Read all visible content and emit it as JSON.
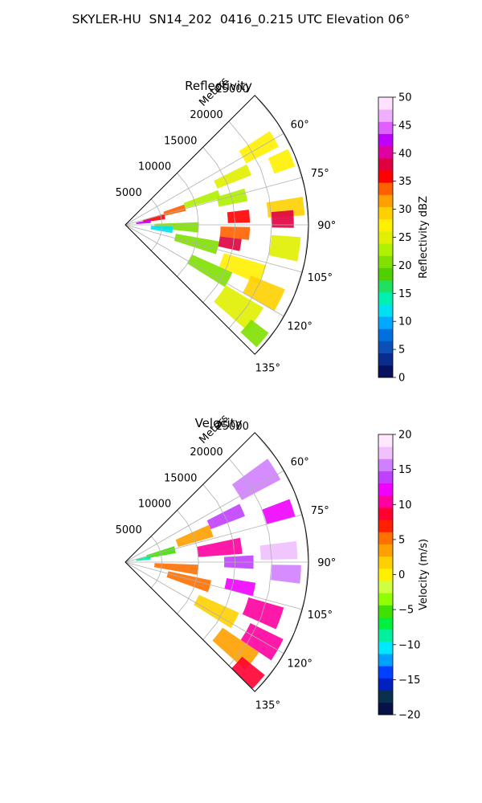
{
  "figure": {
    "title": "SKYLER-HU  SN14_202  0416_0.215 UTC Elevation 06°"
  },
  "colors": {
    "reflectivity_scale": [
      "#081060",
      "#0a2c8c",
      "#0c4fb8",
      "#0070e0",
      "#00a8ff",
      "#00e0f0",
      "#00f0b0",
      "#20e060",
      "#50d000",
      "#80e000",
      "#b0f000",
      "#e0f000",
      "#fff000",
      "#ffd000",
      "#ffa000",
      "#ff6000",
      "#ff0000",
      "#e00040",
      "#e000a0",
      "#c000ff",
      "#e060ff",
      "#f0b0ff",
      "#ffe0ff"
    ],
    "velocity_scale": [
      "#081048",
      "#0a3050",
      "#0020c0",
      "#0040ff",
      "#00a0ff",
      "#00e8ff",
      "#00f0a0",
      "#00f040",
      "#40e000",
      "#90ff00",
      "#d0ff40",
      "#fff000",
      "#ffd000",
      "#ffa000",
      "#ff7000",
      "#ff2000",
      "#ff0030",
      "#ff00a0",
      "#f000ff",
      "#c040ff",
      "#d080ff",
      "#f0c0ff",
      "#ffe8ff"
    ]
  },
  "chart_data": [
    {
      "type": "heatmap",
      "projection": "polar-sector",
      "title": "Reflectivity",
      "radial_label": "Meters",
      "radial_ticks": [
        5000,
        10000,
        15000,
        20000,
        25000
      ],
      "radial_tick_labels": [
        "5000",
        "10000",
        "15000",
        "20000",
        "25000"
      ],
      "angular_ticks": [
        60,
        75,
        90,
        105,
        120,
        135
      ],
      "angular_tick_labels": [
        "60°",
        "75°",
        "90°",
        "105°",
        "120°",
        "135°"
      ],
      "theta_range": [
        45,
        135
      ],
      "r_range": [
        0,
        25000
      ],
      "grid": true,
      "colorbar": {
        "label": "Reflectivity dBZ",
        "range": [
          0,
          50
        ],
        "ticks": [
          0,
          5,
          10,
          15,
          20,
          25,
          30,
          35,
          40,
          45,
          50
        ],
        "tick_labels": [
          "0",
          "5",
          "10",
          "15",
          "20",
          "25",
          "30",
          "35",
          "40",
          "45",
          "50"
        ]
      },
      "cells": [
        {
          "theta": 60,
          "r": 21000,
          "dr": 5000,
          "dtheta": 6,
          "value": 27
        },
        {
          "theta": 66,
          "r": 16000,
          "dr": 5000,
          "dtheta": 5,
          "value": 24
        },
        {
          "theta": 68,
          "r": 23000,
          "dr": 3000,
          "dtheta": 6,
          "value": 28
        },
        {
          "theta": 72,
          "r": 11000,
          "dr": 5000,
          "dtheta": 5,
          "value": 22
        },
        {
          "theta": 74,
          "r": 7000,
          "dr": 3000,
          "dtheta": 6,
          "value": 34
        },
        {
          "theta": 76,
          "r": 15000,
          "dr": 4000,
          "dtheta": 6,
          "value": 23
        },
        {
          "theta": 78,
          "r": 4000,
          "dr": 3000,
          "dtheta": 8,
          "value": 35
        },
        {
          "theta": 82,
          "r": 2500,
          "dr": 2000,
          "dtheta": 8,
          "value": 42
        },
        {
          "theta": 84,
          "r": 22000,
          "dr": 5000,
          "dtheta": 6,
          "value": 30
        },
        {
          "theta": 86,
          "r": 15500,
          "dr": 3000,
          "dtheta": 6,
          "value": 35
        },
        {
          "theta": 88,
          "r": 21500,
          "dr": 3000,
          "dtheta": 6,
          "value": 38
        },
        {
          "theta": 92,
          "r": 7000,
          "dr": 6000,
          "dtheta": 8,
          "value": 20
        },
        {
          "theta": 94,
          "r": 15000,
          "dr": 4000,
          "dtheta": 6,
          "value": 33
        },
        {
          "theta": 96,
          "r": 5000,
          "dr": 3000,
          "dtheta": 8,
          "value": 13
        },
        {
          "theta": 98,
          "r": 22000,
          "dr": 4000,
          "dtheta": 8,
          "value": 24
        },
        {
          "theta": 100,
          "r": 14500,
          "dr": 3000,
          "dtheta": 6,
          "value": 38
        },
        {
          "theta": 104,
          "r": 10000,
          "dr": 6000,
          "dtheta": 8,
          "value": 20
        },
        {
          "theta": 110,
          "r": 17000,
          "dr": 6000,
          "dtheta": 8,
          "value": 27
        },
        {
          "theta": 116,
          "r": 21000,
          "dr": 5000,
          "dtheta": 8,
          "value": 30
        },
        {
          "theta": 118,
          "r": 13000,
          "dr": 6000,
          "dtheta": 8,
          "value": 20
        },
        {
          "theta": 126,
          "r": 19000,
          "dr": 6000,
          "dtheta": 10,
          "value": 24
        },
        {
          "theta": 130,
          "r": 23000,
          "dr": 3000,
          "dtheta": 6,
          "value": 21
        }
      ]
    },
    {
      "type": "heatmap",
      "projection": "polar-sector",
      "title": "Velocity",
      "radial_label": "Meters",
      "radial_ticks": [
        5000,
        10000,
        15000,
        20000,
        25000
      ],
      "radial_tick_labels": [
        "5000",
        "10000",
        "15000",
        "20000",
        "25000"
      ],
      "angular_ticks": [
        60,
        75,
        90,
        105,
        120,
        135
      ],
      "angular_tick_labels": [
        "60°",
        "75°",
        "90°",
        "105°",
        "120°",
        "135°"
      ],
      "theta_range": [
        45,
        135
      ],
      "r_range": [
        0,
        25000
      ],
      "grid": true,
      "colorbar": {
        "label": "Velocity (m/s)",
        "range": [
          -20,
          20
        ],
        "ticks": [
          -20,
          -15,
          -10,
          -5,
          0,
          5,
          10,
          15,
          20
        ],
        "tick_labels": [
          "−20",
          "−15",
          "−10",
          "−5",
          "0",
          "5",
          "10",
          "15",
          "20"
        ]
      },
      "cells": [
        {
          "theta": 58,
          "r": 21000,
          "dr": 6000,
          "dtheta": 8,
          "value": 15
        },
        {
          "theta": 66,
          "r": 15000,
          "dr": 5000,
          "dtheta": 6,
          "value": 14
        },
        {
          "theta": 70,
          "r": 10000,
          "dr": 5000,
          "dtheta": 8,
          "value": 4
        },
        {
          "theta": 72,
          "r": 22000,
          "dr": 4000,
          "dtheta": 6,
          "value": 13
        },
        {
          "theta": 76,
          "r": 5000,
          "dr": 4000,
          "dtheta": 8,
          "value": -6
        },
        {
          "theta": 80,
          "r": 2500,
          "dr": 2000,
          "dtheta": 8,
          "value": -9
        },
        {
          "theta": 82,
          "r": 13000,
          "dr": 6000,
          "dtheta": 8,
          "value": 10
        },
        {
          "theta": 86,
          "r": 21000,
          "dr": 5000,
          "dtheta": 6,
          "value": 17
        },
        {
          "theta": 90,
          "r": 15500,
          "dr": 4000,
          "dtheta": 6,
          "value": 14
        },
        {
          "theta": 94,
          "r": 22000,
          "dr": 4000,
          "dtheta": 6,
          "value": 16
        },
        {
          "theta": 96,
          "r": 7000,
          "dr": 6000,
          "dtheta": 8,
          "value": 5
        },
        {
          "theta": 102,
          "r": 16000,
          "dr": 4000,
          "dtheta": 6,
          "value": 12
        },
        {
          "theta": 106,
          "r": 9000,
          "dr": 6000,
          "dtheta": 8,
          "value": 6
        },
        {
          "theta": 110,
          "r": 20000,
          "dr": 5000,
          "dtheta": 8,
          "value": 11
        },
        {
          "theta": 118,
          "r": 14000,
          "dr": 6000,
          "dtheta": 8,
          "value": 2
        },
        {
          "theta": 120,
          "r": 21500,
          "dr": 5000,
          "dtheta": 8,
          "value": 10
        },
        {
          "theta": 128,
          "r": 19000,
          "dr": 6000,
          "dtheta": 8,
          "value": 3
        },
        {
          "theta": 132,
          "r": 22500,
          "dr": 4000,
          "dtheta": 6,
          "value": 8
        }
      ]
    }
  ]
}
